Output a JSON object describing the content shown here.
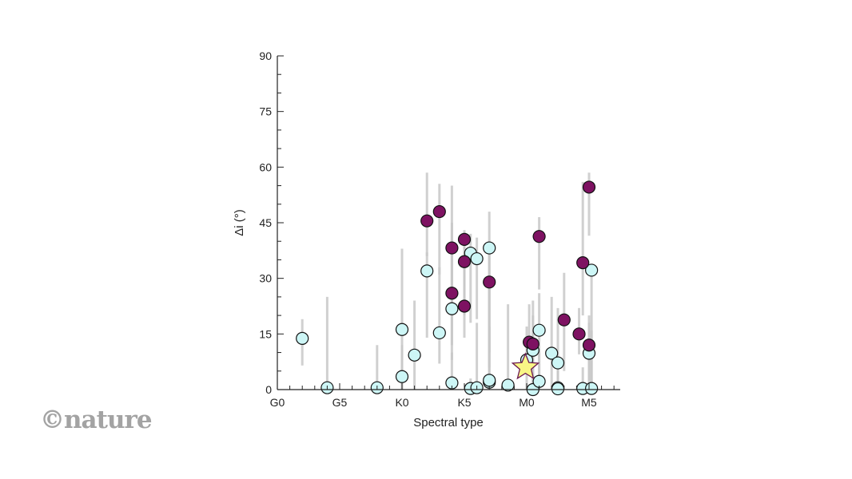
{
  "watermark": "©nature",
  "chart_data": {
    "type": "scatter",
    "xlabel": "Spectral type",
    "ylabel": "Δi (°)",
    "x_categories": [
      "G0",
      "G5",
      "K0",
      "K5",
      "M0",
      "M5"
    ],
    "x_category_values": [
      0,
      5,
      10,
      15,
      20,
      25
    ],
    "xlim": [
      0,
      27.5
    ],
    "ylim": [
      0,
      90
    ],
    "yticks": [
      0,
      15,
      30,
      45,
      60,
      75,
      90
    ],
    "grid": false,
    "colors": {
      "series_a": "#cdf6f6",
      "series_b": "#7e1262",
      "star": "#f8f585",
      "errorbar": "#c8c8c8",
      "axis": "#222222"
    },
    "series": [
      {
        "points": [
          {
            "x": 2,
            "y": 13.8,
            "lo": 6.5,
            "hi": 19
          },
          {
            "x": 4,
            "y": 0.5,
            "lo": 0,
            "hi": 25
          },
          {
            "x": 8,
            "y": 0.5,
            "lo": 0,
            "hi": 12
          },
          {
            "x": 10,
            "y": 16.2,
            "lo": 0,
            "hi": 38
          },
          {
            "x": 10,
            "y": 3.5,
            "lo": 0,
            "hi": 12
          },
          {
            "x": 11,
            "y": 9.3,
            "lo": 0,
            "hi": 24
          },
          {
            "x": 12,
            "y": 32,
            "lo": 14,
            "hi": 37
          },
          {
            "x": 13,
            "y": 15.3,
            "lo": 7,
            "hi": 33
          },
          {
            "x": 14,
            "y": 21.8,
            "lo": 8,
            "hi": 45
          },
          {
            "x": 14,
            "y": 1.8,
            "lo": 0,
            "hi": 10
          },
          {
            "x": 15.5,
            "y": 36.8,
            "lo": 18,
            "hi": 42
          },
          {
            "x": 15.5,
            "y": 0.3,
            "lo": 0,
            "hi": 3
          },
          {
            "x": 16,
            "y": 35.3,
            "lo": 19,
            "hi": 41
          },
          {
            "x": 16,
            "y": 0.5,
            "lo": 0,
            "hi": 18
          },
          {
            "x": 17,
            "y": 38.2,
            "lo": 10,
            "hi": 48
          },
          {
            "x": 17,
            "y": 2,
            "lo": 0,
            "hi": 17
          },
          {
            "x": 17,
            "y": 2.5,
            "lo": 0,
            "hi": 30
          },
          {
            "x": 18.5,
            "y": 1.2,
            "lo": 0,
            "hi": 23
          },
          {
            "x": 20,
            "y": 8,
            "lo": 0,
            "hi": 17
          },
          {
            "x": 20.5,
            "y": 10.6,
            "lo": 0,
            "hi": 24
          },
          {
            "x": 20.5,
            "y": 0,
            "lo": 0,
            "hi": 16
          },
          {
            "x": 21,
            "y": 16,
            "lo": 0,
            "hi": 26
          },
          {
            "x": 21,
            "y": 2.2,
            "lo": 0,
            "hi": 11
          },
          {
            "x": 22,
            "y": 9.8,
            "lo": 0,
            "hi": 25
          },
          {
            "x": 22.5,
            "y": 7.2,
            "lo": 0,
            "hi": 22
          },
          {
            "x": 22.5,
            "y": 0.5,
            "lo": 0,
            "hi": 9
          },
          {
            "x": 22.5,
            "y": 0.2,
            "lo": 0,
            "hi": 5
          },
          {
            "x": 24.5,
            "y": 0.3,
            "lo": 0,
            "hi": 6
          },
          {
            "x": 25,
            "y": 9.8,
            "lo": 0,
            "hi": 18
          },
          {
            "x": 25.2,
            "y": 32.2,
            "lo": 0,
            "hi": 33
          },
          {
            "x": 25.2,
            "y": 0.3,
            "lo": 0,
            "hi": 16
          }
        ]
      },
      {
        "points": [
          {
            "x": 12,
            "y": 45.5,
            "lo": 36,
            "hi": 58.5
          },
          {
            "x": 13,
            "y": 48,
            "lo": 31,
            "hi": 55.5
          },
          {
            "x": 14,
            "y": 38.2,
            "lo": 22,
            "hi": 55
          },
          {
            "x": 14,
            "y": 26,
            "lo": 12,
            "hi": 40
          },
          {
            "x": 15,
            "y": 40.5,
            "lo": 28,
            "hi": 43
          },
          {
            "x": 15,
            "y": 34.5,
            "lo": 20,
            "hi": 42
          },
          {
            "x": 15,
            "y": 22.5,
            "lo": 14,
            "hi": 33
          },
          {
            "x": 17,
            "y": 29,
            "lo": 6,
            "hi": 40
          },
          {
            "x": 20.2,
            "y": 12.8,
            "lo": 6,
            "hi": 23
          },
          {
            "x": 20.5,
            "y": 12.3,
            "lo": 6,
            "hi": 20
          },
          {
            "x": 21,
            "y": 41.3,
            "lo": 27,
            "hi": 46.5
          },
          {
            "x": 23,
            "y": 18.8,
            "lo": 5,
            "hi": 31.5
          },
          {
            "x": 24.2,
            "y": 15,
            "lo": 9.5,
            "hi": 22
          },
          {
            "x": 24.5,
            "y": 34.2,
            "lo": 20,
            "hi": 56
          },
          {
            "x": 25,
            "y": 54.6,
            "lo": 41.5,
            "hi": 58.5
          },
          {
            "x": 25,
            "y": 12,
            "lo": 2.5,
            "hi": 20
          }
        ]
      }
    ],
    "star": {
      "x": 19.9,
      "y": 6
    }
  }
}
